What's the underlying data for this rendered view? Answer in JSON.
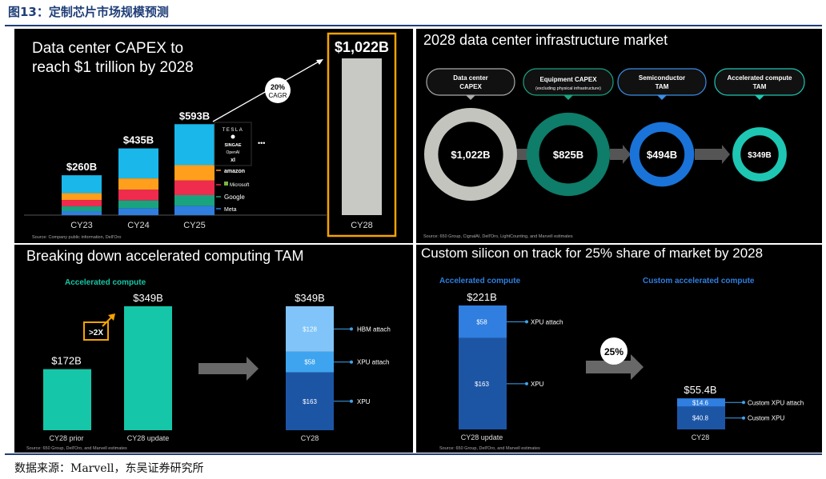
{
  "figure": {
    "title": "图13：定制芯片市场规模预测",
    "source": "数据来源：Marvell，东吴证券研究所"
  },
  "colors": {
    "panel_bg": "#000000",
    "capex_cyan": "#1ab7ea",
    "capex_orange": "#ff9f1c",
    "capex_red": "#ef2b4e",
    "capex_green": "#1aa37f",
    "capex_blue": "#2f7ee0",
    "cy28_gray": "#c8c8c4",
    "highlight": "#f5a300",
    "ring_gray": "#c4c4bf",
    "ring_green": "#0e7d6a",
    "ring_blue": "#1a73d8",
    "ring_teal": "#1ec7b3",
    "teal_bar": "#16c6a8",
    "dark_blue": "#1d55a5",
    "mid_blue": "#3fa4ef",
    "light_blue": "#80c4f9"
  },
  "panel1": {
    "title_line1": "Data center CAPEX to",
    "title_line2": "reach $1 trillion by 2028",
    "cagr_pct": "20%",
    "cagr_label": "CAGR",
    "companies": [
      "TESLA",
      "",
      "SINGAE",
      "OpenAI",
      "xI",
      "•••"
    ],
    "labeled_companies": [
      "amazon",
      "Microsoft",
      "Google",
      "Meta"
    ],
    "source": "Source: Company public information, Dell'Oro"
  },
  "panel2": {
    "title": "2028 data center infrastructure market",
    "labels": [
      {
        "line1": "Data center",
        "line2": "CAPEX",
        "sub": ""
      },
      {
        "line1": "Equipment CAPEX",
        "line2": "",
        "sub": "(excluding physical infrastructure)"
      },
      {
        "line1": "Semiconductor",
        "line2": "TAM",
        "sub": ""
      },
      {
        "line1": "Accelerated compute",
        "line2": "TAM",
        "sub": ""
      }
    ],
    "source": "Source: 650 Group, CignalAI, Dell'Oro, LightCounting, and Marvell estimates"
  },
  "panel3": {
    "title": "Breaking down accelerated computing TAM",
    "section_label": "Accelerated compute",
    "multiplier": ">2X",
    "source": "Source: 650 Group, Dell'Oro, and Marvell estimates"
  },
  "panel4": {
    "title": "Custom silicon on track for 25% share of market by 2028",
    "left_label": "Accelerated compute",
    "right_label": "Custom accelerated compute",
    "share": "25%",
    "source": "Source: 650 Group, Dell'Oro, and Marvell estimates"
  },
  "chart_data": [
    {
      "id": "capex",
      "type": "bar",
      "title": "Data center CAPEX to reach $1 trillion by 2028",
      "unit": "$B",
      "categories": [
        "CY23",
        "CY24",
        "CY25",
        "CY28"
      ],
      "values": [
        260,
        435,
        593,
        1022
      ],
      "value_labels": [
        "$260B",
        "$435B",
        "$593B",
        "$1,022B"
      ],
      "ylim": [
        0,
        1022
      ],
      "stack_segments_for": [
        "CY23",
        "CY24",
        "CY25"
      ],
      "segments": [
        "Others",
        "Amazon",
        "Microsoft",
        "Google",
        "Meta"
      ],
      "highlight": "CY28",
      "annotation": "20% CAGR"
    },
    {
      "id": "infrastructure",
      "type": "funnel",
      "title": "2028 data center infrastructure market",
      "categories": [
        "Data center CAPEX",
        "Equipment CAPEX",
        "Semiconductor TAM",
        "Accelerated compute TAM"
      ],
      "values": [
        1022,
        825,
        494,
        349
      ],
      "value_labels": [
        "$1,022B",
        "$825B",
        "$494B",
        "$349B"
      ],
      "unit": "$B"
    },
    {
      "id": "accel_compute",
      "type": "bar",
      "title": "Breaking down accelerated computing TAM",
      "categories": [
        "CY28 prior",
        "CY28 update"
      ],
      "values": [
        172,
        349
      ],
      "value_labels": [
        "$172B",
        "$349B"
      ],
      "ylim": [
        0,
        349
      ],
      "annotation": ">2X"
    },
    {
      "id": "accel_breakdown",
      "type": "bar",
      "stacked": true,
      "categories": [
        "CY28"
      ],
      "total_label": "$349B",
      "series": [
        {
          "name": "XPU",
          "values": [
            163
          ],
          "label": "$163"
        },
        {
          "name": "XPU attach",
          "values": [
            58
          ],
          "label": "$58"
        },
        {
          "name": "HBM attach",
          "values": [
            128
          ],
          "label": "$128"
        }
      ],
      "ylim": [
        0,
        349
      ]
    },
    {
      "id": "custom_accel",
      "type": "bar",
      "stacked": true,
      "title": "Custom silicon on track for 25% share of market by 2028",
      "categories": [
        "CY28 update"
      ],
      "total_label": "$221B",
      "series": [
        {
          "name": "XPU",
          "values": [
            163
          ],
          "label": "$163"
        },
        {
          "name": "XPU attach",
          "values": [
            58
          ],
          "label": "$58"
        }
      ],
      "ylim": [
        0,
        221
      ]
    },
    {
      "id": "custom_breakdown",
      "type": "bar",
      "stacked": true,
      "categories": [
        "CY28"
      ],
      "total_label": "$55.4B",
      "series": [
        {
          "name": "Custom XPU",
          "values": [
            40.8
          ],
          "label": "$40.8"
        },
        {
          "name": "Custom XPU attach",
          "values": [
            14.6
          ],
          "label": "$14.6"
        }
      ],
      "ylim": [
        0,
        221
      ],
      "annotation": "25%"
    }
  ]
}
